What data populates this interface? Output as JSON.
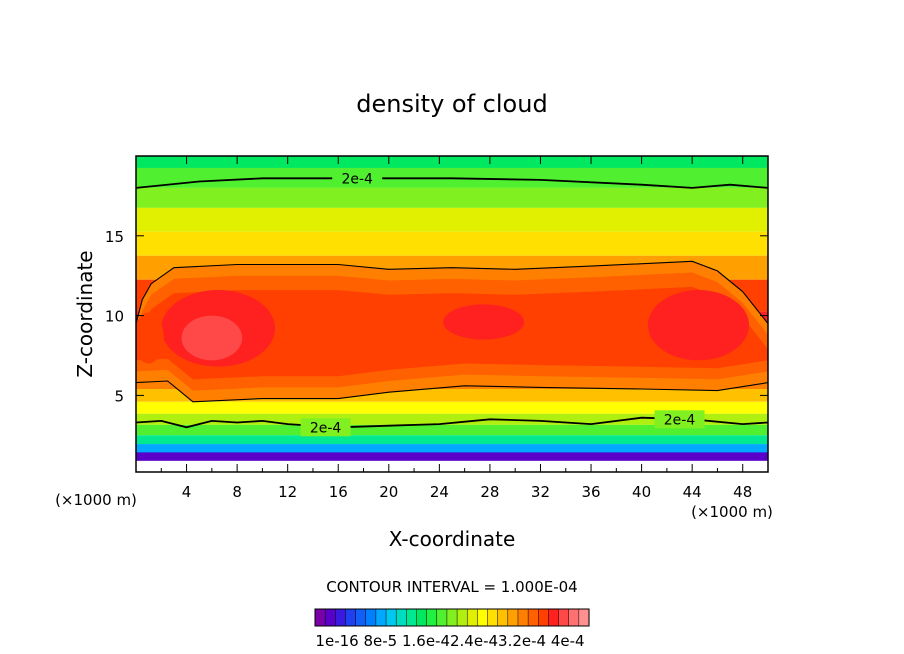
{
  "chart_data": {
    "type": "heatmap",
    "title": "density of cloud",
    "xlabel": "X-coordinate",
    "ylabel": "Z-coordinate",
    "x_unit_label": "(×1000 m)",
    "y_unit_label": "(×1000 m)",
    "xlim": [
      0,
      50
    ],
    "ylim": [
      0.2,
      20
    ],
    "x_ticks": [
      4,
      8,
      12,
      16,
      20,
      24,
      28,
      32,
      36,
      40,
      44,
      48
    ],
    "y_ticks": [
      5,
      10,
      15
    ],
    "grid": false,
    "contour_interval_text": "CONTOUR INTERVAL = 1.000E-04",
    "contour_label": "2e-4",
    "contour_label_positions": [
      {
        "x": 17.5,
        "z": 18.6
      },
      {
        "x": 15.0,
        "z": 3.0
      },
      {
        "x": 43.0,
        "z": 3.5
      }
    ],
    "colorbar": {
      "tick_labels": [
        "1e-16",
        "8e-5",
        "1.6e-4",
        "2.4e-4",
        "3.2e-4",
        "4e-4"
      ],
      "tick_text": "1e-16 8e-5 1.6e-42.4e-43.2e-4 4e-4",
      "colors": [
        "#7a00a8",
        "#5a00c8",
        "#3a1ae0",
        "#2040f0",
        "#1060f8",
        "#0080ff",
        "#00a8ff",
        "#00c8ee",
        "#00dcc0",
        "#00e890",
        "#00e860",
        "#20f040",
        "#50f030",
        "#80f020",
        "#b0f010",
        "#e0f000",
        "#ffff00",
        "#ffe000",
        "#ffc000",
        "#ffa000",
        "#ff8000",
        "#ff6000",
        "#ff4000",
        "#ff2020",
        "#ff4848",
        "#ff7070",
        "#ff9090"
      ]
    },
    "level_bands": [
      {
        "z": 0.5,
        "level": 0
      },
      {
        "z": 1.2,
        "level": 3
      },
      {
        "z": 1.7,
        "level": 6
      },
      {
        "z": 2.2,
        "level": 9
      },
      {
        "z": 2.8,
        "level": 12
      },
      {
        "z": 3.5,
        "level": 14
      },
      {
        "z": 4.2,
        "level": 16
      },
      {
        "z": 5.0,
        "level": 18
      },
      {
        "z": 5.8,
        "level": 20
      },
      {
        "z": 7.0,
        "level": 22
      },
      {
        "z": 9.0,
        "level": 23
      },
      {
        "z": 11.5,
        "level": 22
      },
      {
        "z": 13.0,
        "level": 19
      },
      {
        "z": 14.5,
        "level": 17
      },
      {
        "z": 16.0,
        "level": 15
      },
      {
        "z": 17.5,
        "level": 13
      },
      {
        "z": 18.5,
        "level": 12
      },
      {
        "z": 20.0,
        "level": 10
      }
    ],
    "outer_contour_lines": [
      {
        "name": "upper",
        "points": [
          [
            0,
            18.0
          ],
          [
            5,
            18.4
          ],
          [
            10,
            18.6
          ],
          [
            17.5,
            18.6
          ],
          [
            25,
            18.6
          ],
          [
            32,
            18.5
          ],
          [
            40,
            18.2
          ],
          [
            44,
            18.0
          ],
          [
            47,
            18.2
          ],
          [
            50,
            18.0
          ]
        ]
      },
      {
        "name": "top-of-core",
        "points": [
          [
            0,
            9.5
          ],
          [
            0.5,
            11.0
          ],
          [
            1.2,
            12.0
          ],
          [
            3,
            13.0
          ],
          [
            8,
            13.2
          ],
          [
            16,
            13.2
          ],
          [
            20,
            12.9
          ],
          [
            25,
            13.0
          ],
          [
            30,
            12.9
          ],
          [
            36,
            13.1
          ],
          [
            44,
            13.4
          ],
          [
            46,
            12.8
          ],
          [
            48,
            11.5
          ],
          [
            50,
            9.5
          ]
        ]
      },
      {
        "name": "bottom-of-core",
        "points": [
          [
            0,
            5.8
          ],
          [
            2.5,
            5.9
          ],
          [
            4.5,
            4.6
          ],
          [
            10,
            4.8
          ],
          [
            16,
            4.8
          ],
          [
            20,
            5.2
          ],
          [
            26,
            5.6
          ],
          [
            32,
            5.5
          ],
          [
            40,
            5.4
          ],
          [
            46,
            5.3
          ],
          [
            50,
            5.8
          ]
        ]
      },
      {
        "name": "low",
        "points": [
          [
            0,
            3.3
          ],
          [
            2,
            3.4
          ],
          [
            4,
            3.0
          ],
          [
            6,
            3.4
          ],
          [
            8,
            3.3
          ],
          [
            10,
            3.4
          ],
          [
            12,
            3.2
          ],
          [
            16,
            3.0
          ],
          [
            20,
            3.1
          ],
          [
            24,
            3.2
          ],
          [
            28,
            3.5
          ],
          [
            32,
            3.4
          ],
          [
            36,
            3.2
          ],
          [
            40,
            3.6
          ],
          [
            44,
            3.5
          ],
          [
            48,
            3.2
          ],
          [
            50,
            3.3
          ]
        ]
      }
    ]
  }
}
